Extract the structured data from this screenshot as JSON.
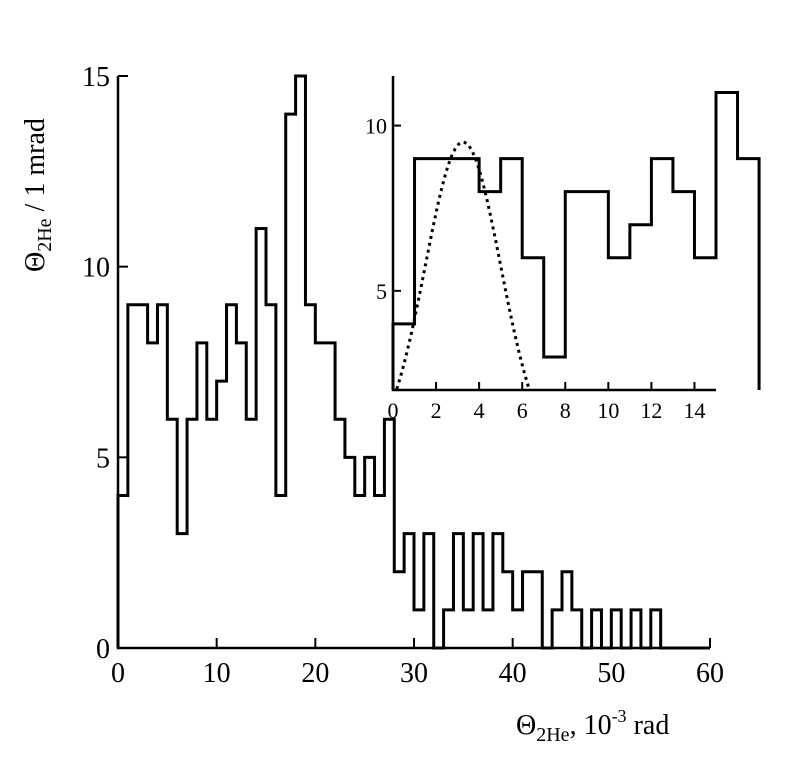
{
  "chart_data": [
    {
      "id": "main",
      "type": "histogram",
      "xlabel": {
        "base": "Θ",
        "sub": "2He",
        "rest": ", 10",
        "sup": "-3",
        "unit": " rad"
      },
      "ylabel": {
        "base": "Θ",
        "sub": "2He",
        "rest": " / 1 mrad"
      },
      "xlim": [
        0,
        60
      ],
      "ylim": [
        0,
        15
      ],
      "xticks": [
        {
          "value": 0,
          "label": "0"
        },
        {
          "value": 10,
          "label": "10"
        },
        {
          "value": 20,
          "label": "20"
        },
        {
          "value": 30,
          "label": "30"
        },
        {
          "value": 40,
          "label": "40"
        },
        {
          "value": 50,
          "label": "50"
        },
        {
          "value": 60,
          "label": "60"
        }
      ],
      "yticks": [
        {
          "value": 0,
          "label": "0"
        },
        {
          "value": 5,
          "label": "5"
        },
        {
          "value": 10,
          "label": "10"
        },
        {
          "value": 15,
          "label": "15"
        }
      ],
      "bin_start": 0,
      "bin_width": 1,
      "values": [
        4,
        9,
        9,
        8,
        9,
        6,
        3,
        6,
        8,
        6,
        7,
        9,
        8,
        6,
        11,
        9,
        4,
        14,
        15,
        9,
        8,
        8,
        6,
        5,
        4,
        5,
        4,
        6,
        2,
        3,
        1,
        3,
        0,
        1,
        3,
        1,
        3,
        1,
        3,
        2,
        1,
        2,
        2,
        0,
        1,
        2,
        1,
        0,
        1,
        0,
        1,
        0,
        1,
        0,
        1,
        0,
        0,
        0,
        0,
        0
      ]
    },
    {
      "id": "inset",
      "type": "histogram",
      "xlim": [
        0,
        15
      ],
      "ylim": [
        2,
        11.5
      ],
      "xticks": [
        {
          "value": 0,
          "label": "0"
        },
        {
          "value": 2,
          "label": "2"
        },
        {
          "value": 4,
          "label": "4"
        },
        {
          "value": 6,
          "label": "6"
        },
        {
          "value": 8,
          "label": "8"
        },
        {
          "value": 10,
          "label": "10"
        },
        {
          "value": 12,
          "label": "12"
        },
        {
          "value": 14,
          "label": "14"
        }
      ],
      "yticks": [
        {
          "value": 5,
          "label": "5"
        },
        {
          "value": 10,
          "label": "10"
        }
      ],
      "bin_start": 0,
      "bin_width": 1,
      "values": [
        4,
        9,
        9,
        9,
        8,
        9,
        6,
        3,
        8,
        8,
        6,
        7,
        9,
        8,
        6,
        11,
        9
      ],
      "fit": {
        "type": "gaussian",
        "mean": 3.25,
        "sigma": 1.75,
        "amplitude": 9.5,
        "x_range": [
          0,
          7
        ]
      }
    }
  ]
}
